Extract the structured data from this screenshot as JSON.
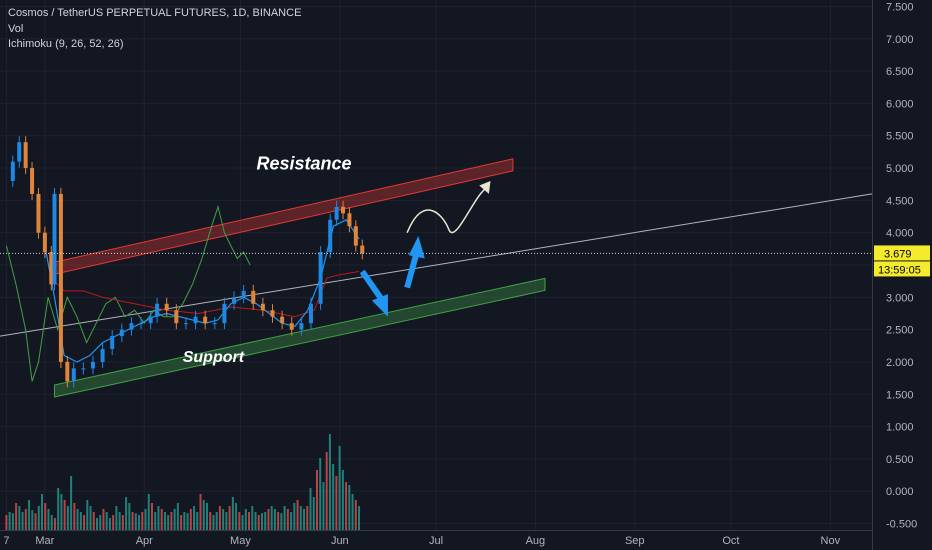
{
  "header": {
    "symbol": "Cosmos / TetherUS PERPETUAL FUTURES, 1D, BINANCE",
    "volume_label": "Vol",
    "indicator_label": "Ichimoku (9, 26, 52, 26)"
  },
  "price_tag": {
    "value": "3.679",
    "timer": "13:59:05",
    "color": "#f5eb2c"
  },
  "annotations": {
    "resistance": "Resistance",
    "support": "Support"
  },
  "colors": {
    "background": "#131722",
    "up": "#26a69a",
    "down": "#ef5350",
    "candle_up": "#1e88e5",
    "conversion_line": "#2196f3",
    "base_line": "#b71c1c",
    "lagging_span": "#43a047",
    "resistance_channel": "#e53935",
    "support_channel": "#43a047"
  },
  "chart_data": {
    "type": "line",
    "price_axis": {
      "ticks": [
        "7.500",
        "7.000",
        "6.500",
        "6.000",
        "5.500",
        "5.000",
        "4.500",
        "4.000",
        "3.500",
        "3.000",
        "2.500",
        "2.000",
        "1.500",
        "1.000",
        "0.500",
        "0.000",
        "-0.500"
      ],
      "range": [
        -0.6,
        7.6
      ]
    },
    "time_axis": {
      "labels": [
        "7",
        "Mar",
        "Apr",
        "May",
        "Jun",
        "Jul",
        "Aug",
        "Sep",
        "Oct",
        "Nov"
      ],
      "label_days": [
        0,
        12,
        43,
        73,
        104,
        134,
        165,
        196,
        226,
        257
      ],
      "range_days": [
        -2,
        270
      ]
    },
    "current_price": 3.679,
    "series": [
      {
        "name": "Price",
        "points": [
          [
            0,
            4.8
          ],
          [
            2,
            5.1
          ],
          [
            4,
            5.4
          ],
          [
            6,
            5.0
          ],
          [
            8,
            4.6
          ],
          [
            10,
            4.0
          ],
          [
            12,
            3.7
          ],
          [
            14,
            3.2
          ],
          [
            15,
            4.6
          ],
          [
            17,
            2.0
          ],
          [
            19,
            1.7
          ],
          [
            21,
            1.9
          ],
          [
            24,
            1.9
          ],
          [
            27,
            2.0
          ],
          [
            30,
            2.2
          ],
          [
            33,
            2.4
          ],
          [
            36,
            2.5
          ],
          [
            39,
            2.6
          ],
          [
            42,
            2.6
          ],
          [
            45,
            2.7
          ],
          [
            47,
            2.9
          ],
          [
            50,
            2.8
          ],
          [
            53,
            2.6
          ],
          [
            56,
            2.6
          ],
          [
            59,
            2.7
          ],
          [
            62,
            2.6
          ],
          [
            65,
            2.6
          ],
          [
            68,
            2.9
          ],
          [
            71,
            3.0
          ],
          [
            74,
            3.1
          ],
          [
            77,
            2.9
          ],
          [
            80,
            2.8
          ],
          [
            83,
            2.7
          ],
          [
            86,
            2.6
          ],
          [
            89,
            2.5
          ],
          [
            92,
            2.6
          ],
          [
            95,
            2.9
          ],
          [
            98,
            3.7
          ],
          [
            101,
            4.2
          ],
          [
            103,
            4.4
          ],
          [
            105,
            4.3
          ],
          [
            107,
            4.1
          ],
          [
            109,
            3.8
          ],
          [
            111,
            3.68
          ]
        ]
      },
      {
        "name": "Conversion line",
        "points": [
          [
            12,
            3.8
          ],
          [
            15,
            3.0
          ],
          [
            18,
            2.1
          ],
          [
            22,
            2.0
          ],
          [
            26,
            2.1
          ],
          [
            30,
            2.3
          ],
          [
            34,
            2.4
          ],
          [
            38,
            2.5
          ],
          [
            42,
            2.6
          ],
          [
            46,
            2.7
          ],
          [
            50,
            2.75
          ],
          [
            54,
            2.7
          ],
          [
            58,
            2.65
          ],
          [
            62,
            2.6
          ],
          [
            66,
            2.65
          ],
          [
            70,
            2.9
          ],
          [
            74,
            3.0
          ],
          [
            78,
            2.9
          ],
          [
            82,
            2.75
          ],
          [
            86,
            2.6
          ],
          [
            90,
            2.55
          ],
          [
            94,
            2.8
          ],
          [
            98,
            3.3
          ],
          [
            102,
            4.1
          ],
          [
            106,
            4.2
          ],
          [
            110,
            3.9
          ]
        ]
      },
      {
        "name": "Base line",
        "points": [
          [
            14,
            3.3
          ],
          [
            18,
            3.1
          ],
          [
            24,
            3.1
          ],
          [
            30,
            3.0
          ],
          [
            40,
            2.9
          ],
          [
            50,
            2.8
          ],
          [
            60,
            2.75
          ],
          [
            70,
            2.85
          ],
          [
            80,
            2.8
          ],
          [
            90,
            2.7
          ],
          [
            96,
            2.8
          ],
          [
            100,
            3.3
          ],
          [
            104,
            3.35
          ],
          [
            110,
            3.4
          ]
        ]
      },
      {
        "name": "Lagging span",
        "points": [
          [
            0,
            3.8
          ],
          [
            3,
            3.2
          ],
          [
            6,
            2.5
          ],
          [
            8,
            1.7
          ],
          [
            10,
            2.0
          ],
          [
            13,
            3.0
          ],
          [
            16,
            2.5
          ],
          [
            19,
            3.0
          ],
          [
            22,
            2.7
          ],
          [
            25,
            2.3
          ],
          [
            28,
            2.6
          ],
          [
            31,
            2.9
          ],
          [
            34,
            3.0
          ],
          [
            37,
            2.7
          ],
          [
            40,
            2.8
          ],
          [
            43,
            2.6
          ],
          [
            46,
            2.8
          ],
          [
            49,
            2.7
          ],
          [
            52,
            2.7
          ],
          [
            55,
            2.9
          ],
          [
            58,
            3.2
          ],
          [
            61,
            3.6
          ],
          [
            64,
            4.1
          ],
          [
            66,
            4.4
          ],
          [
            68,
            4.0
          ],
          [
            70,
            3.8
          ],
          [
            72,
            3.6
          ],
          [
            74,
            3.7
          ],
          [
            76,
            3.5
          ]
        ]
      },
      {
        "name": "Resistance channel",
        "points": [
          [
            15,
            3.45
          ],
          [
            158,
            5.05
          ]
        ]
      },
      {
        "name": "Support channel",
        "points": [
          [
            15,
            1.55
          ],
          [
            168,
            3.2
          ]
        ]
      },
      {
        "name": "Trend line",
        "points": [
          [
            -2,
            2.4
          ],
          [
            270,
            4.6
          ]
        ]
      }
    ],
    "volume": [
      0.25,
      0.3,
      0.28,
      0.45,
      0.4,
      0.3,
      0.35,
      0.5,
      0.33,
      0.28,
      0.4,
      0.6,
      0.45,
      0.35,
      0.25,
      0.2,
      0.7,
      0.6,
      0.5,
      0.4,
      0.9,
      0.45,
      0.35,
      0.3,
      0.25,
      0.5,
      0.4,
      0.3,
      0.2,
      0.25,
      0.35,
      0.3,
      0.2,
      0.25,
      0.4,
      0.3,
      0.25,
      0.55,
      0.45,
      0.3,
      0.28,
      0.25,
      0.3,
      0.35,
      0.6,
      0.45,
      0.3,
      0.4,
      0.35,
      0.3,
      0.25,
      0.3,
      0.35,
      0.45,
      0.25,
      0.3,
      0.28,
      0.35,
      0.4,
      0.3,
      0.6,
      0.5,
      0.45,
      0.3,
      0.25,
      0.3,
      0.4,
      0.35,
      0.3,
      0.4,
      0.55,
      0.45,
      0.3,
      0.25,
      0.35,
      0.3,
      0.4,
      0.3,
      0.25,
      0.28,
      0.3,
      0.35,
      0.4,
      0.35,
      0.3,
      0.28,
      0.4,
      0.35,
      0.3,
      0.45,
      0.5,
      0.4,
      0.35,
      0.4,
      0.7,
      0.55,
      1.0,
      1.2,
      0.8,
      1.3,
      1.6,
      1.1,
      0.9,
      1.4,
      1.0,
      0.8,
      0.75,
      0.6,
      0.5,
      0.4
    ]
  }
}
